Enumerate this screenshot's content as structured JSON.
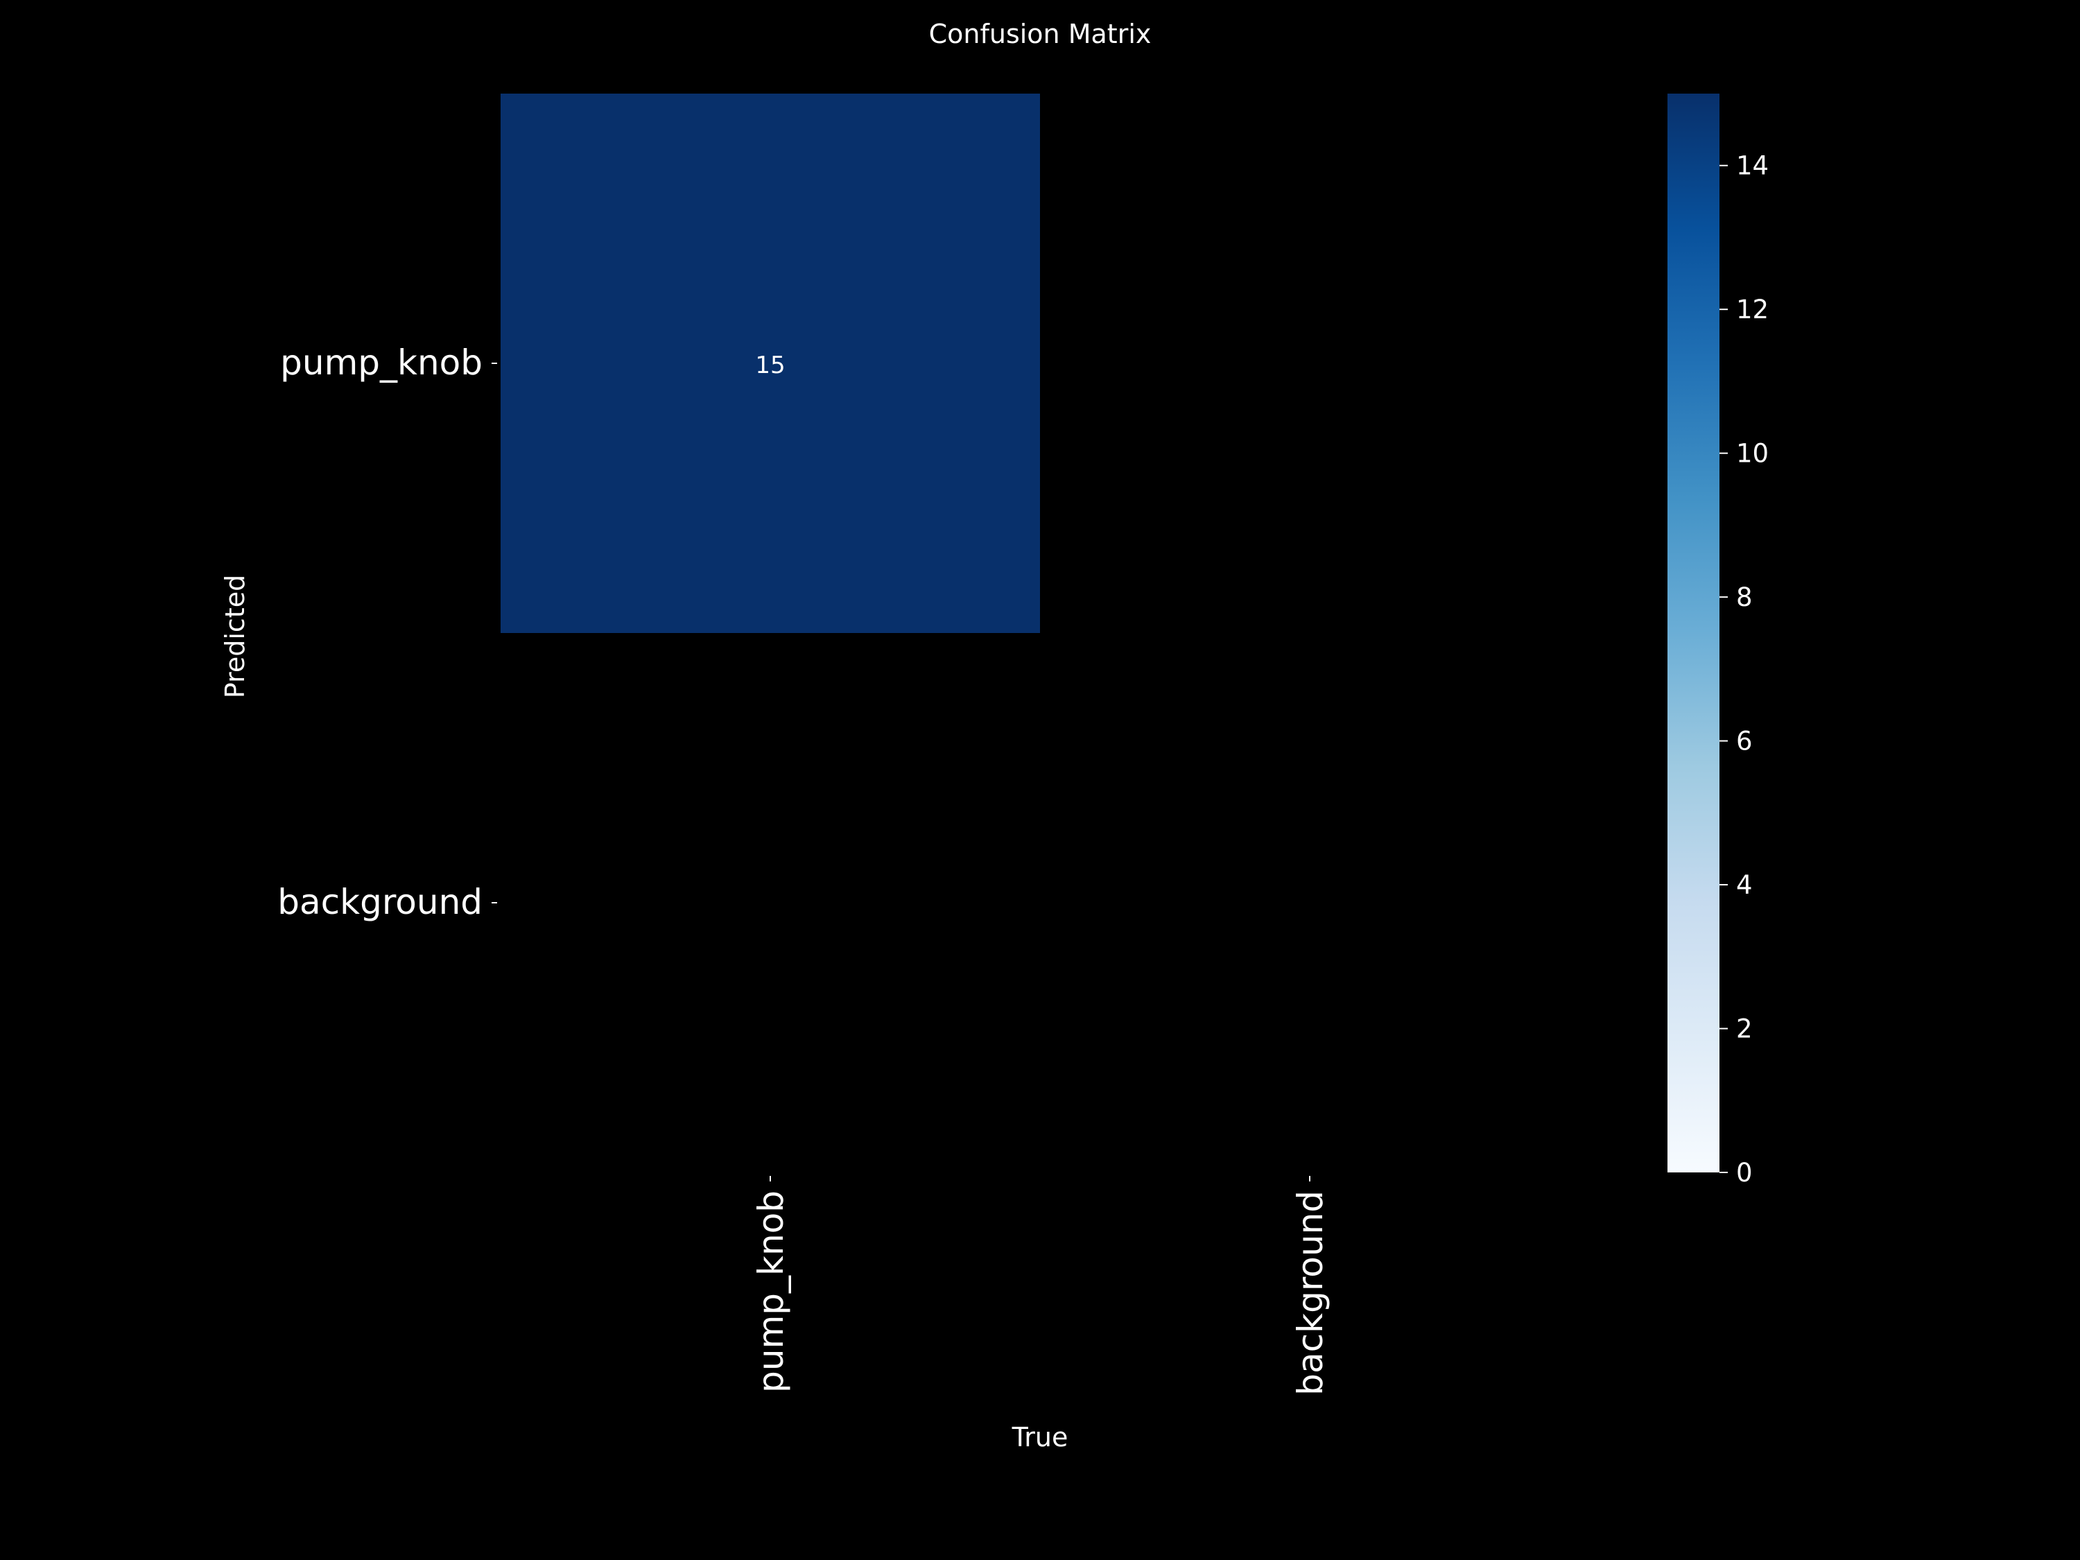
{
  "chart_data": {
    "type": "heatmap",
    "title": "Confusion Matrix",
    "xlabel": "True",
    "ylabel": "Predicted",
    "x_categories": [
      "pump_knob",
      "background"
    ],
    "y_categories": [
      "pump_knob",
      "background"
    ],
    "matrix": [
      [
        15,
        0
      ],
      [
        0,
        0
      ]
    ],
    "annotations_shown": [
      {
        "row": 0,
        "col": 0,
        "text": "15"
      }
    ],
    "colorbar": {
      "range": [
        0,
        15
      ],
      "ticks": [
        0,
        2,
        4,
        6,
        8,
        10,
        12,
        14
      ],
      "colormap": "Blues"
    },
    "zero_cells_masked": true
  },
  "colors": {
    "background": "#000000",
    "text": "#ffffff",
    "blues_stops": [
      "#f7fbff",
      "#deebf7",
      "#c6dbef",
      "#9ecae1",
      "#6baed6",
      "#4292c6",
      "#2171b5",
      "#08519c",
      "#08306b"
    ]
  }
}
